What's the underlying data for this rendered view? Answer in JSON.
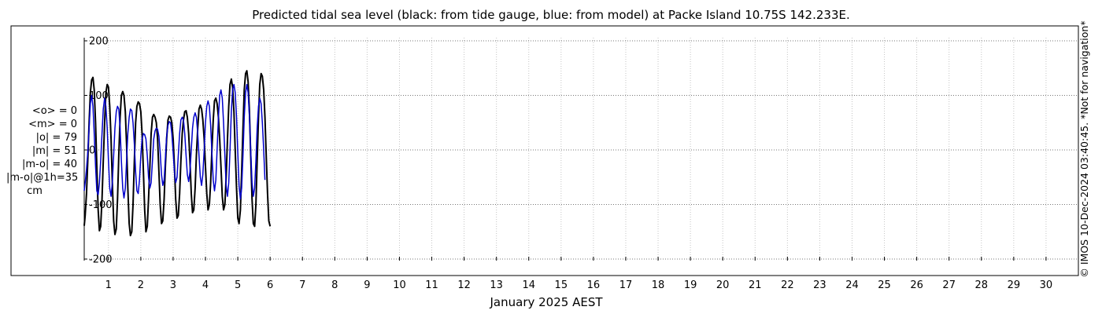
{
  "chart_data": {
    "type": "line",
    "title": "Predicted tidal sea level (black: from tide gauge, blue: from model) at Packe Island 10.75S 142.233E.",
    "xlabel": "January 2025 AEST",
    "ylabel": "",
    "ylim": [
      -200,
      200
    ],
    "xlim": [
      0.25,
      31
    ],
    "yticks": [
      -200,
      -100,
      0,
      100,
      200
    ],
    "yticklabels": [
      "-200",
      "-100",
      "0",
      "100",
      "200"
    ],
    "xticks": [
      1,
      2,
      3,
      4,
      5,
      6,
      7,
      8,
      9,
      10,
      11,
      12,
      13,
      14,
      15,
      16,
      17,
      18,
      19,
      20,
      21,
      22,
      23,
      24,
      25,
      26,
      27,
      28,
      29,
      30
    ],
    "grid": true,
    "legend": "none",
    "series": [
      {
        "color": "#000000",
        "sample_days": [
          0.25,
          0.28,
          0.32,
          0.36,
          0.4,
          0.44,
          0.48,
          0.52,
          0.56,
          0.6,
          0.64,
          0.68,
          0.72,
          0.76,
          0.8,
          0.84,
          0.88,
          0.92,
          0.96,
          1.0,
          1.04,
          1.08,
          1.12,
          1.16,
          1.2,
          1.24,
          1.28,
          1.32,
          1.36,
          1.4,
          1.44,
          1.48,
          1.52,
          1.56,
          1.6,
          1.64,
          1.68,
          1.72,
          1.76,
          1.8,
          1.84,
          1.88,
          1.92,
          1.96,
          2.0,
          2.04,
          2.08,
          2.12,
          2.16,
          2.2,
          2.24,
          2.28,
          2.32,
          2.36,
          2.4,
          2.44,
          2.48,
          2.52,
          2.56,
          2.6,
          2.64,
          2.68,
          2.72,
          2.76,
          2.8,
          2.84,
          2.88,
          2.92,
          2.96,
          3.0,
          3.04,
          3.08,
          3.12,
          3.16,
          3.2,
          3.24,
          3.28,
          3.32,
          3.36,
          3.4,
          3.44,
          3.48,
          3.52,
          3.56,
          3.6,
          3.64,
          3.68,
          3.72,
          3.76,
          3.8,
          3.84,
          3.88,
          3.92,
          3.96,
          4.0,
          4.04,
          4.08,
          4.12,
          4.16,
          4.2,
          4.24,
          4.28,
          4.32,
          4.36,
          4.4,
          4.44,
          4.48,
          4.52,
          4.56,
          4.6,
          4.64,
          4.68,
          4.72,
          4.76,
          4.8,
          4.84,
          4.88,
          4.92,
          4.96,
          5.0,
          5.04,
          5.08,
          5.12,
          5.16,
          5.2,
          5.24,
          5.28,
          5.32,
          5.36,
          5.4,
          5.44,
          5.48,
          5.52,
          5.56,
          5.6,
          5.64,
          5.68,
          5.72,
          5.76,
          5.8,
          5.84,
          5.88,
          5.92,
          5.96,
          6.0
        ],
        "values": [
          -139,
          -120,
          -80,
          -20,
          50,
          105,
          128,
          133,
          110,
          50,
          -30,
          -110,
          -148,
          -140,
          -90,
          -20,
          50,
          105,
          120,
          115,
          80,
          20,
          -60,
          -130,
          -155,
          -145,
          -90,
          -10,
          60,
          100,
          107,
          100,
          70,
          10,
          -70,
          -135,
          -157,
          -150,
          -100,
          -20,
          50,
          80,
          88,
          85,
          70,
          30,
          -40,
          -110,
          -150,
          -140,
          -90,
          -30,
          30,
          60,
          65,
          60,
          50,
          20,
          -40,
          -100,
          -135,
          -130,
          -90,
          -30,
          20,
          55,
          62,
          60,
          50,
          20,
          -30,
          -90,
          -125,
          -120,
          -80,
          -20,
          30,
          55,
          70,
          72,
          60,
          30,
          -20,
          -80,
          -115,
          -110,
          -70,
          -10,
          40,
          75,
          82,
          75,
          55,
          20,
          -30,
          -80,
          -110,
          -100,
          -60,
          0,
          55,
          90,
          95,
          85,
          60,
          20,
          -30,
          -85,
          -110,
          -100,
          -50,
          20,
          80,
          120,
          130,
          115,
          70,
          0,
          -70,
          -125,
          -135,
          -110,
          -40,
          40,
          110,
          140,
          145,
          125,
          70,
          -10,
          -90,
          -135,
          -140,
          -100,
          -20,
          60,
          120,
          140,
          135,
          110,
          60,
          -10,
          -80,
          -130,
          -140
        ]
      },
      {
        "color": "#0000cc",
        "values": [
          -75,
          -60,
          -35,
          -5,
          40,
          85,
          100,
          80,
          30,
          -30,
          -75,
          -82,
          -60,
          -20,
          30,
          75,
          95,
          80,
          40,
          -20,
          -70,
          -85,
          -60,
          -10,
          40,
          70,
          80,
          75,
          40,
          -20,
          -70,
          -88,
          -70,
          -20,
          30,
          60,
          75,
          72,
          50,
          10,
          -40,
          -75,
          -80,
          -55,
          -10,
          20,
          30,
          28,
          20,
          -10,
          -50,
          -70,
          -60,
          -20,
          20,
          35,
          40,
          38,
          25,
          -5,
          -45,
          -65,
          -55,
          -15,
          25,
          45,
          52,
          50,
          30,
          -5,
          -40,
          -60,
          -50,
          -10,
          30,
          55,
          60,
          55,
          30,
          -10,
          -45,
          -58,
          -40,
          0,
          40,
          60,
          68,
          60,
          30,
          -10,
          -50,
          -65,
          -45,
          0,
          50,
          80,
          90,
          80,
          45,
          -5,
          -55,
          -75,
          -55,
          0,
          60,
          100,
          110,
          95,
          50,
          -10,
          -65,
          -85,
          -60,
          0,
          70,
          110,
          120,
          105,
          60,
          -5,
          -65,
          -90,
          -70,
          -10,
          60,
          105,
          120,
          105,
          60,
          0,
          -60,
          -85,
          -70,
          -20,
          40,
          80,
          95,
          85,
          50,
          0,
          -55
        ]
      }
    ]
  },
  "stats": {
    "mean_obs": "<o> = 0",
    "mean_model": "<m> = 0",
    "abs_obs": "|o| = 79",
    "abs_model": "|m| = 51",
    "abs_diff": "|m-o| = 40",
    "abs_diff_1h": "|m-o|@1h=35",
    "unit": "cm"
  },
  "copyright": "© IMOS 10-Dec-2024 03:40:45. *Not for navigation*"
}
